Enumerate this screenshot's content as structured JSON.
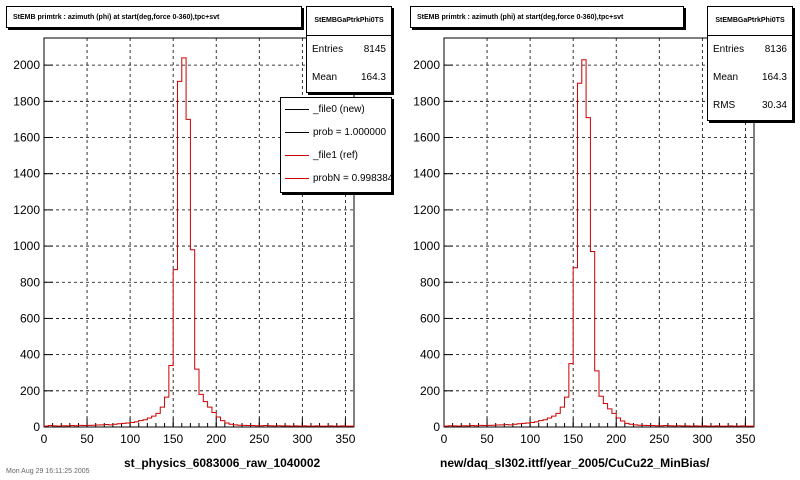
{
  "colors": {
    "background": "#ffffff",
    "frame": "#000000",
    "grid": "#000000",
    "hist": "#cc0000",
    "legend_new": "#000000",
    "legend_ref": "#cc0000"
  },
  "panels": [
    {
      "title": "StEMB primtrk : azimuth (phi) at start(deg,force 0-360),tpc+svt",
      "stats": {
        "name": "StEMBGaPtrkPhi0TS",
        "entries_label": "Entries",
        "entries": "8145",
        "mean_label": "Mean",
        "mean": "164.3"
      },
      "xlabel": "st_physics_6083006_raw_1040002",
      "legend": [
        {
          "text": "_file0 (new)",
          "color": "#000000"
        },
        {
          "text": "prob = 1.000000",
          "color": "#000000"
        },
        {
          "text": "_file1 (ref)",
          "color": "#cc0000"
        },
        {
          "text": "probN = 0.998384",
          "color": "#cc0000"
        }
      ]
    },
    {
      "title": "StEMB primtrk : azimuth (phi) at start(deg,force 0-360),tpc+svt",
      "stats": {
        "name": "StEMBGaPtrkPhi0TS",
        "entries_label": "Entries",
        "entries": "8136",
        "mean_label": "Mean",
        "mean": "164.3",
        "rms_label": "RMS",
        "rms": "30.34"
      },
      "xlabel": "new/daq_sl302.ittf/year_2005/CuCu22_MinBias/"
    }
  ],
  "footer": "Mon Aug 29 16:11:25 2005",
  "chart_data": [
    {
      "type": "bar",
      "xlim": [
        0,
        360
      ],
      "ylim": [
        0,
        2150
      ],
      "grid": true,
      "x_ticks": [
        0,
        50,
        100,
        150,
        200,
        250,
        300,
        350
      ],
      "y_ticks": [
        0,
        200,
        400,
        600,
        800,
        1000,
        1200,
        1400,
        1600,
        1800,
        2000
      ],
      "bin_width": 5,
      "x": [
        0,
        5,
        10,
        15,
        20,
        25,
        30,
        35,
        40,
        45,
        50,
        55,
        60,
        65,
        70,
        75,
        80,
        85,
        90,
        95,
        100,
        105,
        110,
        115,
        120,
        125,
        130,
        135,
        140,
        145,
        150,
        155,
        160,
        165,
        170,
        175,
        180,
        185,
        190,
        195,
        200,
        205,
        210,
        215,
        220,
        225,
        230,
        235,
        240,
        245,
        250,
        255,
        260,
        265,
        270,
        275,
        280,
        285,
        290,
        295,
        300,
        305,
        310,
        315,
        320,
        325,
        330,
        335,
        340,
        345,
        350,
        355
      ],
      "series": [
        {
          "values": [
            5,
            8,
            6,
            5,
            7,
            6,
            8,
            7,
            9,
            8,
            9,
            10,
            11,
            12,
            14,
            12,
            15,
            18,
            20,
            22,
            25,
            28,
            35,
            40,
            50,
            60,
            75,
            110,
            165,
            340,
            870,
            1910,
            2040,
            1700,
            980,
            320,
            180,
            140,
            110,
            80,
            55,
            35,
            22,
            15,
            12,
            10,
            9,
            8,
            8,
            7,
            7,
            8,
            7,
            6,
            7,
            6,
            6,
            5,
            6,
            5,
            6,
            5,
            5,
            6,
            5,
            5,
            6,
            5,
            5,
            6,
            5,
            5
          ]
        }
      ]
    },
    {
      "type": "bar",
      "xlim": [
        0,
        360
      ],
      "ylim": [
        0,
        2150
      ],
      "grid": true,
      "x_ticks": [
        0,
        50,
        100,
        150,
        200,
        250,
        300,
        350
      ],
      "y_ticks": [
        0,
        200,
        400,
        600,
        800,
        1000,
        1200,
        1400,
        1600,
        1800,
        2000
      ],
      "bin_width": 5,
      "x": [
        0,
        5,
        10,
        15,
        20,
        25,
        30,
        35,
        40,
        45,
        50,
        55,
        60,
        65,
        70,
        75,
        80,
        85,
        90,
        95,
        100,
        105,
        110,
        115,
        120,
        125,
        130,
        135,
        140,
        145,
        150,
        155,
        160,
        165,
        170,
        175,
        180,
        185,
        190,
        195,
        200,
        205,
        210,
        215,
        220,
        225,
        230,
        235,
        240,
        245,
        250,
        255,
        260,
        265,
        270,
        275,
        280,
        285,
        290,
        295,
        300,
        305,
        310,
        315,
        320,
        325,
        330,
        335,
        340,
        345,
        350,
        355
      ],
      "series": [
        {
          "values": [
            5,
            7,
            6,
            5,
            7,
            6,
            8,
            7,
            9,
            8,
            9,
            10,
            11,
            12,
            13,
            12,
            15,
            18,
            20,
            22,
            25,
            28,
            35,
            40,
            50,
            60,
            75,
            110,
            165,
            350,
            880,
            1900,
            2030,
            1710,
            970,
            310,
            170,
            130,
            100,
            75,
            50,
            33,
            20,
            15,
            12,
            10,
            9,
            8,
            8,
            7,
            7,
            8,
            7,
            6,
            7,
            6,
            6,
            5,
            6,
            5,
            6,
            5,
            5,
            6,
            5,
            5,
            6,
            5,
            5,
            6,
            5,
            5
          ]
        }
      ]
    }
  ]
}
